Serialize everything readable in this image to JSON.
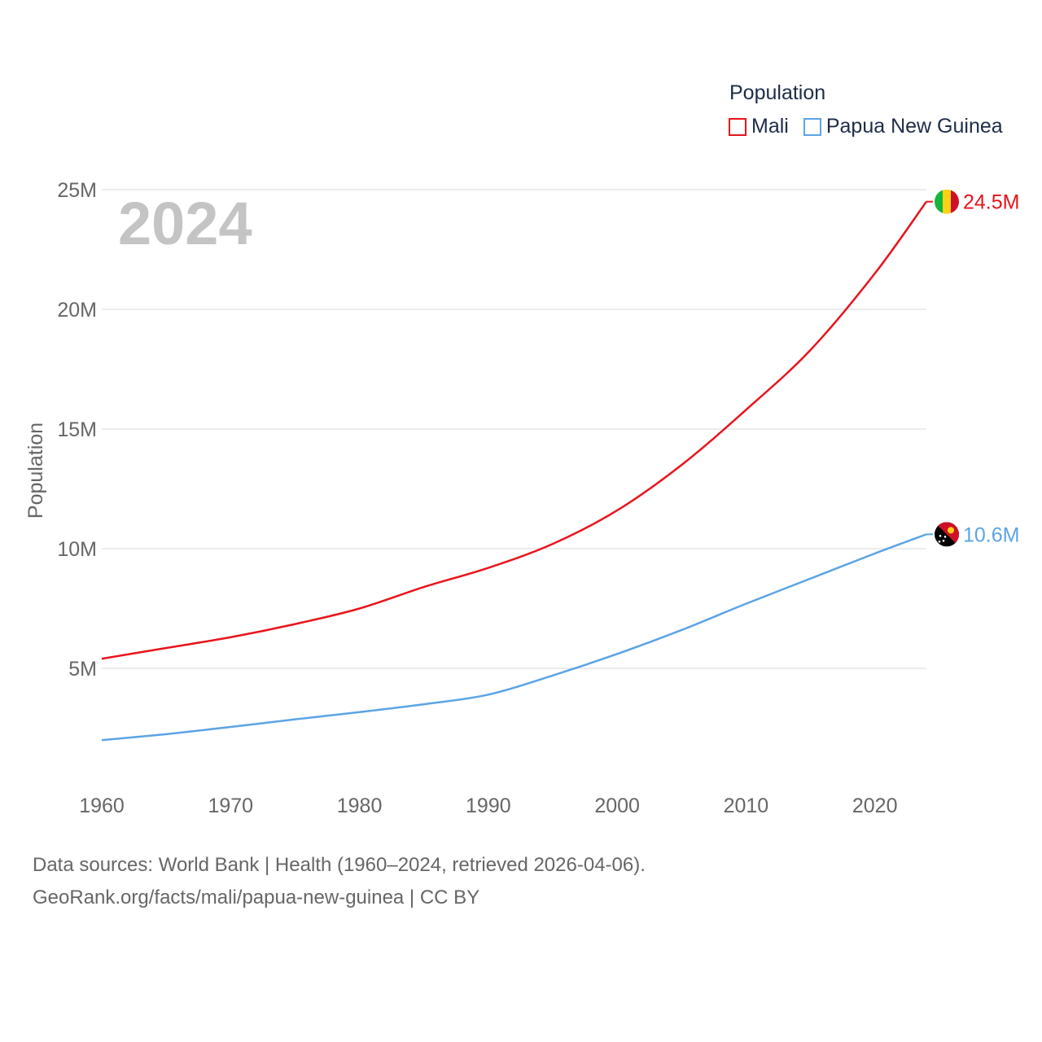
{
  "chart_data": {
    "type": "line",
    "legend_title": "Population",
    "ylabel": "Population",
    "year_label": "2024",
    "x_range": [
      1960,
      2024
    ],
    "ylim": [
      0,
      25000000
    ],
    "x_ticks": [
      1960,
      1970,
      1980,
      1990,
      2000,
      2010,
      2020
    ],
    "y_ticks": [
      {
        "value": 5000000,
        "label": "5M"
      },
      {
        "value": 10000000,
        "label": "10M"
      },
      {
        "value": 15000000,
        "label": "15M"
      },
      {
        "value": 20000000,
        "label": "20M"
      },
      {
        "value": 25000000,
        "label": "25M"
      }
    ],
    "series": [
      {
        "name": "Mali",
        "color": "#e8141b",
        "end_label": "24.5M",
        "flag": "mali-flag-icon",
        "points": [
          [
            1960,
            5400000
          ],
          [
            1965,
            5850000
          ],
          [
            1970,
            6300000
          ],
          [
            1975,
            6850000
          ],
          [
            1980,
            7500000
          ],
          [
            1985,
            8400000
          ],
          [
            1990,
            9200000
          ],
          [
            1995,
            10200000
          ],
          [
            2000,
            11600000
          ],
          [
            2005,
            13500000
          ],
          [
            2010,
            15800000
          ],
          [
            2015,
            18300000
          ],
          [
            2020,
            21500000
          ],
          [
            2024,
            24500000
          ]
        ]
      },
      {
        "name": "Papua New Guinea",
        "color": "#5ba4e5",
        "end_label": "10.6M",
        "flag": "png-flag-icon",
        "points": [
          [
            1960,
            2000000
          ],
          [
            1965,
            2250000
          ],
          [
            1970,
            2550000
          ],
          [
            1975,
            2870000
          ],
          [
            1980,
            3170000
          ],
          [
            1985,
            3500000
          ],
          [
            1990,
            3900000
          ],
          [
            1995,
            4700000
          ],
          [
            2000,
            5600000
          ],
          [
            2005,
            6600000
          ],
          [
            2010,
            7700000
          ],
          [
            2015,
            8750000
          ],
          [
            2020,
            9800000
          ],
          [
            2024,
            10600000
          ]
        ]
      }
    ]
  },
  "footer": {
    "line1": "Data sources: World Bank | Health (1960–2024, retrieved 2026-04-06).",
    "line2": "GeoRank.org/facts/mali/papua-new-guinea | CC BY"
  }
}
